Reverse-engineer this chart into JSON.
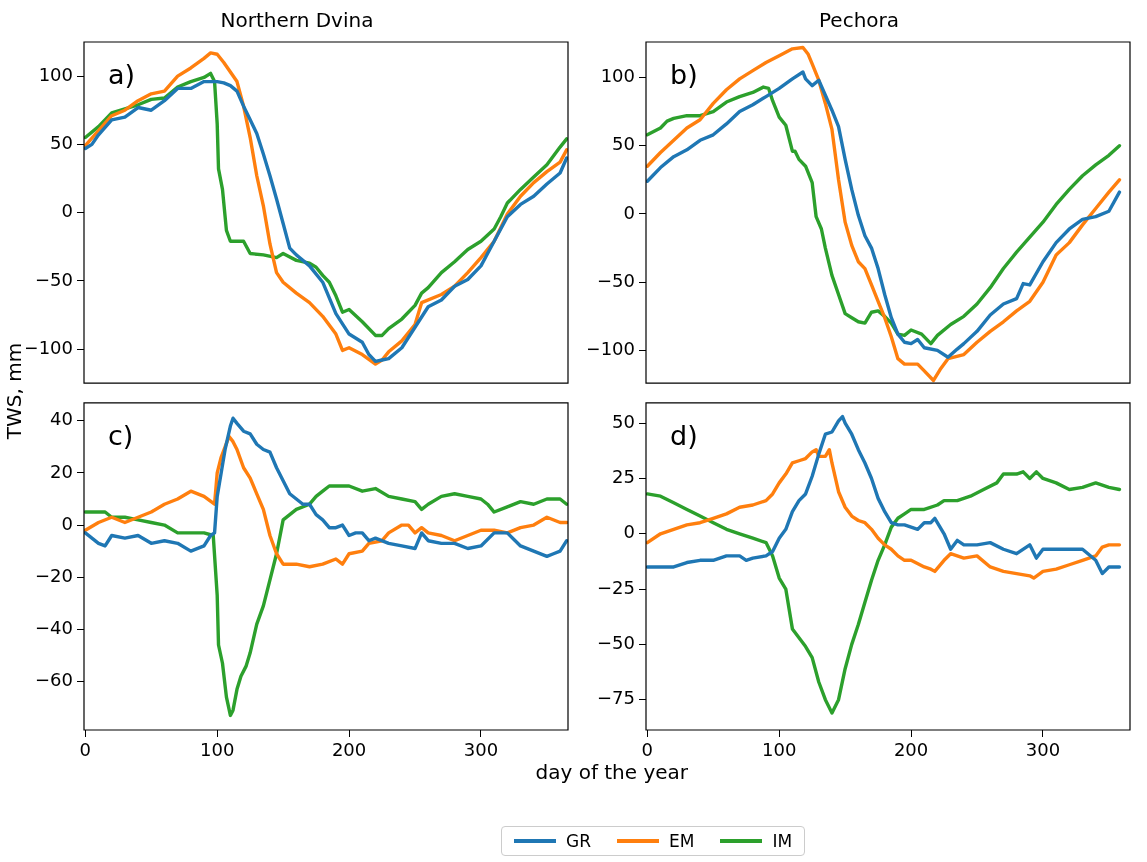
{
  "chart_data": [
    {
      "type": "line",
      "title": "Northern Dvina",
      "ylabel": "TWS, mm",
      "annotations": [
        "a)"
      ],
      "legend": "bottom",
      "tick_labels": "y",
      "xlim": [
        -1,
        366
      ],
      "xticks": [
        0,
        100,
        200,
        300
      ],
      "ylim": [
        -125,
        125
      ],
      "yticks": [
        100,
        50,
        0,
        {
          "value": -50,
          "label": "−50"
        },
        {
          "value": -100,
          "label": "−100"
        }
      ],
      "series": [
        {
          "name": "GR",
          "color": "#1f77b4",
          "x": [
            0,
            5,
            10,
            20,
            30,
            40,
            50,
            60,
            70,
            80,
            90,
            100,
            105,
            110,
            115,
            120,
            125,
            130,
            135,
            140,
            145,
            150,
            155,
            160,
            170,
            180,
            190,
            200,
            210,
            215,
            220,
            225,
            230,
            240,
            250,
            260,
            270,
            280,
            290,
            300,
            310,
            320,
            330,
            340,
            350,
            360,
            365
          ],
          "values": [
            47,
            50,
            57,
            68,
            70,
            77,
            75,
            82,
            91,
            91,
            96,
            96,
            95,
            93,
            89,
            78,
            68,
            58,
            43,
            27,
            10,
            -8,
            -26,
            -31,
            -39,
            -51,
            -74,
            -89,
            -95,
            -104,
            -109,
            -108,
            -107,
            -99,
            -84,
            -69,
            -64,
            -54,
            -49,
            -39,
            -21,
            -3,
            6,
            12,
            21,
            29,
            40
          ]
        },
        {
          "name": "EM",
          "color": "#ff7f0e",
          "x": [
            0,
            10,
            20,
            30,
            40,
            50,
            60,
            70,
            80,
            90,
            95,
            100,
            105,
            110,
            115,
            120,
            125,
            130,
            135,
            140,
            145,
            150,
            160,
            170,
            180,
            190,
            195,
            200,
            210,
            220,
            225,
            230,
            240,
            250,
            255,
            270,
            280,
            290,
            300,
            310,
            320,
            330,
            340,
            350,
            360,
            365
          ],
          "values": [
            49,
            60,
            71,
            75,
            82,
            87,
            89,
            100,
            106,
            113,
            117,
            116,
            110,
            103,
            96,
            78,
            55,
            27,
            5,
            -23,
            -44,
            -51,
            -59,
            -66,
            -76,
            -89,
            -101,
            -99,
            -104,
            -111,
            -108,
            -102,
            -94,
            -82,
            -66,
            -60,
            -54,
            -44,
            -33,
            -21,
            -1,
            12,
            22,
            30,
            37,
            46
          ]
        },
        {
          "name": "IM",
          "color": "#2ca02c",
          "x": [
            0,
            10,
            20,
            30,
            40,
            50,
            60,
            70,
            80,
            90,
            95,
            98,
            100,
            101,
            104,
            107,
            110,
            115,
            120,
            125,
            135,
            145,
            150,
            160,
            170,
            175,
            180,
            185,
            190,
            195,
            200,
            210,
            220,
            225,
            230,
            240,
            250,
            255,
            260,
            270,
            280,
            290,
            300,
            310,
            315,
            320,
            330,
            340,
            350,
            360,
            365
          ],
          "values": [
            55,
            63,
            73,
            76,
            79,
            83,
            84,
            92,
            96,
            99,
            102,
            96,
            65,
            32,
            17,
            -13,
            -21,
            -21,
            -21,
            -30,
            -31,
            -33,
            -30,
            -35,
            -37,
            -40,
            -46,
            -51,
            -61,
            -73,
            -71,
            -80,
            -90,
            -90,
            -85,
            -78,
            -68,
            -59,
            -55,
            -44,
            -36,
            -27,
            -21,
            -12,
            -3,
            7,
            17,
            26,
            35,
            48,
            54
          ]
        }
      ]
    },
    {
      "type": "line",
      "title": "Pechora",
      "annotations": [
        "b)"
      ],
      "tick_labels": "y",
      "xlim": [
        -1,
        366
      ],
      "xticks": [
        0,
        100,
        200,
        300
      ],
      "ylim": [
        -124,
        126
      ],
      "yticks": [
        100,
        50,
        0,
        {
          "value": -50,
          "label": "−50"
        },
        {
          "value": -100,
          "label": "−100"
        }
      ],
      "series": [
        {
          "name": "GR",
          "color": "#1f77b4",
          "x": [
            0,
            10,
            20,
            30,
            40,
            50,
            60,
            70,
            80,
            90,
            100,
            110,
            118,
            120,
            125,
            130,
            135,
            140,
            145,
            150,
            155,
            160,
            165,
            170,
            175,
            180,
            185,
            190,
            195,
            200,
            205,
            210,
            220,
            228,
            235,
            240,
            250,
            260,
            270,
            280,
            285,
            290,
            300,
            310,
            320,
            330,
            340,
            350,
            358
          ],
          "values": [
            24,
            34,
            42,
            47,
            54,
            58,
            66,
            75,
            80,
            86,
            92,
            99,
            104,
            99,
            94,
            98,
            87,
            76,
            64,
            40,
            18,
            -1,
            -16,
            -25,
            -40,
            -59,
            -76,
            -88,
            -94,
            -95,
            -92,
            -98,
            -100,
            -105,
            -99,
            -95,
            -86,
            -74,
            -66,
            -62,
            -51,
            -52,
            -35,
            -21,
            -11,
            -4,
            -2,
            2,
            16
          ]
        },
        {
          "name": "EM",
          "color": "#ff7f0e",
          "x": [
            0,
            10,
            20,
            30,
            40,
            50,
            60,
            70,
            80,
            90,
            100,
            110,
            118,
            122,
            125,
            130,
            135,
            140,
            145,
            150,
            155,
            160,
            165,
            170,
            175,
            180,
            185,
            190,
            195,
            205,
            210,
            217,
            222,
            228,
            240,
            250,
            260,
            270,
            280,
            290,
            300,
            310,
            320,
            330,
            340,
            350,
            358
          ],
          "values": [
            35,
            45,
            54,
            63,
            69,
            81,
            91,
            99,
            105,
            111,
            116,
            121,
            122,
            117,
            110,
            98,
            81,
            62,
            25,
            -6,
            -23,
            -35,
            -40,
            -52,
            -64,
            -76,
            -90,
            -106,
            -110,
            -110,
            -115,
            -122,
            -114,
            -106,
            -103,
            -94,
            -86,
            -79,
            -71,
            -64,
            -50,
            -30,
            -21,
            -8,
            4,
            16,
            25
          ]
        },
        {
          "name": "IM",
          "color": "#2ca02c",
          "x": [
            0,
            10,
            15,
            20,
            30,
            40,
            50,
            60,
            70,
            80,
            88,
            92,
            95,
            100,
            105,
            110,
            112,
            115,
            120,
            125,
            128,
            132,
            135,
            140,
            145,
            150,
            155,
            160,
            165,
            170,
            175,
            180,
            185,
            190,
            195,
            200,
            208,
            215,
            220,
            230,
            240,
            250,
            260,
            270,
            280,
            290,
            300,
            310,
            320,
            330,
            340,
            350,
            358
          ],
          "values": [
            58,
            63,
            68,
            70,
            72,
            72,
            75,
            82,
            86,
            89,
            93,
            92,
            83,
            71,
            65,
            46,
            46,
            40,
            35,
            23,
            -2,
            -11,
            -25,
            -45,
            -59,
            -73,
            -76,
            -79,
            -80,
            -72,
            -71,
            -75,
            -80,
            -88,
            -89,
            -85,
            -88,
            -95,
            -89,
            -81,
            -75,
            -66,
            -54,
            -40,
            -28,
            -17,
            -6,
            7,
            18,
            28,
            36,
            43,
            50
          ]
        }
      ]
    },
    {
      "type": "line",
      "xlabel": "day of the year",
      "annotations": [
        "c)"
      ],
      "xlim": [
        -1,
        366
      ],
      "xticks": [
        0,
        100,
        200,
        300
      ],
      "ylim": [
        -78.6,
        46.9
      ],
      "yticks": [
        40,
        20,
        0,
        {
          "value": -20,
          "label": "−20"
        },
        {
          "value": -40,
          "label": "−40"
        },
        {
          "value": -60,
          "label": "−60"
        }
      ],
      "series": [
        {
          "name": "GR",
          "color": "#1f77b4",
          "x": [
            0,
            5,
            10,
            15,
            20,
            30,
            40,
            50,
            60,
            70,
            80,
            90,
            95,
            98,
            100,
            103,
            106,
            110,
            112,
            115,
            120,
            125,
            130,
            135,
            140,
            145,
            150,
            155,
            160,
            165,
            170,
            175,
            180,
            185,
            190,
            195,
            200,
            205,
            210,
            215,
            220,
            230,
            240,
            250,
            255,
            260,
            270,
            280,
            290,
            300,
            310,
            320,
            330,
            340,
            350,
            355,
            360,
            365
          ],
          "values": [
            -3,
            -5,
            -7,
            -8,
            -4,
            -5,
            -4,
            -7,
            -6,
            -7,
            -10,
            -8,
            -4,
            -3,
            11,
            20,
            29,
            38,
            41,
            39,
            36,
            35,
            31,
            29,
            28,
            22,
            17,
            12,
            10,
            8,
            8,
            4,
            2,
            -1,
            -1,
            0,
            -4,
            -3,
            -3,
            -6,
            -5,
            -7,
            -8,
            -9,
            -3,
            -6,
            -7,
            -7,
            -9,
            -8,
            -3,
            -3,
            -8,
            -10,
            -12,
            -11,
            -10,
            -6
          ]
        },
        {
          "name": "EM",
          "color": "#ff7f0e",
          "x": [
            0,
            10,
            20,
            30,
            40,
            50,
            60,
            70,
            80,
            90,
            98,
            100,
            103,
            106,
            109,
            112,
            115,
            120,
            125,
            130,
            135,
            140,
            145,
            150,
            155,
            160,
            170,
            180,
            190,
            195,
            200,
            210,
            215,
            225,
            230,
            240,
            245,
            250,
            255,
            260,
            270,
            280,
            290,
            300,
            310,
            320,
            330,
            340,
            350,
            360,
            365
          ],
          "values": [
            -2,
            1,
            3,
            1,
            3,
            5,
            8,
            10,
            13,
            11,
            8,
            20,
            26,
            30,
            34,
            32,
            29,
            22,
            18,
            12,
            6,
            -4,
            -11,
            -15,
            -15,
            -15,
            -16,
            -15,
            -13,
            -15,
            -11,
            -10,
            -7,
            -6,
            -3,
            0,
            0,
            -3,
            -1,
            -3,
            -4,
            -6,
            -4,
            -2,
            -2,
            -3,
            -1,
            0,
            3,
            1,
            1
          ]
        },
        {
          "name": "IM",
          "color": "#2ca02c",
          "x": [
            0,
            10,
            15,
            20,
            30,
            40,
            50,
            60,
            70,
            80,
            90,
            97,
            100,
            101,
            104,
            107,
            110,
            112,
            115,
            118,
            122,
            125,
            130,
            135,
            140,
            145,
            150,
            155,
            160,
            170,
            175,
            180,
            185,
            195,
            200,
            210,
            220,
            230,
            240,
            250,
            255,
            260,
            270,
            280,
            290,
            300,
            305,
            310,
            320,
            330,
            340,
            350,
            360,
            365
          ],
          "values": [
            5,
            5,
            5,
            3,
            3,
            2,
            1,
            0,
            -3,
            -3,
            -3,
            -4,
            -27,
            -46,
            -53,
            -66,
            -73,
            -71,
            -63,
            -58,
            -54,
            -49,
            -38,
            -31,
            -21,
            -11,
            2,
            4,
            6,
            8,
            11,
            13,
            15,
            15,
            15,
            13,
            14,
            11,
            10,
            9,
            6,
            8,
            11,
            12,
            11,
            10,
            8,
            5,
            7,
            9,
            8,
            10,
            10,
            8
          ]
        }
      ]
    },
    {
      "type": "line",
      "annotations": [
        "d)"
      ],
      "xlim": [
        -1,
        366
      ],
      "xticks": [
        0,
        100,
        200,
        300
      ],
      "ylim": [
        -88.7,
        59.2
      ],
      "yticks": [
        50,
        25,
        0,
        {
          "value": -25,
          "label": "−25"
        },
        {
          "value": -50,
          "label": "−50"
        },
        {
          "value": -75,
          "label": "−75"
        }
      ],
      "series": [
        {
          "name": "GR",
          "color": "#1f77b4",
          "x": [
            0,
            10,
            20,
            30,
            40,
            50,
            60,
            70,
            75,
            80,
            90,
            95,
            100,
            105,
            110,
            115,
            120,
            125,
            130,
            135,
            140,
            145,
            148,
            150,
            155,
            160,
            165,
            170,
            175,
            180,
            185,
            190,
            195,
            200,
            205,
            210,
            215,
            218,
            225,
            230,
            235,
            240,
            250,
            260,
            270,
            280,
            290,
            295,
            300,
            310,
            320,
            330,
            340,
            345,
            350,
            358
          ],
          "values": [
            -15,
            -15,
            -15,
            -13,
            -12,
            -12,
            -10,
            -10,
            -12,
            -11,
            -10,
            -8,
            -2,
            2,
            10,
            15,
            18,
            26,
            36,
            45,
            46,
            51,
            53,
            50,
            45,
            38,
            32,
            25,
            16,
            10,
            5,
            4,
            4,
            3,
            2,
            5,
            5,
            7,
            0,
            -7,
            -3,
            -5,
            -5,
            -4,
            -7,
            -9,
            -5,
            -11,
            -7,
            -7,
            -7,
            -7,
            -12,
            -18,
            -15,
            -15
          ]
        },
        {
          "name": "EM",
          "color": "#ff7f0e",
          "x": [
            0,
            10,
            20,
            30,
            40,
            50,
            60,
            70,
            80,
            90,
            95,
            100,
            105,
            110,
            115,
            120,
            125,
            128,
            130,
            135,
            138,
            140,
            145,
            150,
            155,
            160,
            165,
            170,
            175,
            180,
            185,
            190,
            195,
            200,
            210,
            215,
            218,
            225,
            230,
            240,
            250,
            260,
            270,
            280,
            290,
            293,
            300,
            310,
            320,
            330,
            340,
            345,
            350,
            358
          ],
          "values": [
            -4,
            0,
            2,
            4,
            5,
            7,
            9,
            12,
            13,
            15,
            18,
            23,
            27,
            32,
            33,
            34,
            37,
            38,
            35,
            35,
            38,
            32,
            19,
            12,
            8,
            6,
            5,
            2,
            -2,
            -5,
            -7,
            -10,
            -12,
            -12,
            -15,
            -16,
            -17,
            -12,
            -9,
            -11,
            -10,
            -15,
            -17,
            -18,
            -19,
            -20,
            -17,
            -16,
            -14,
            -12,
            -10,
            -6,
            -5,
            -5
          ]
        },
        {
          "name": "IM",
          "color": "#2ca02c",
          "x": [
            0,
            10,
            20,
            30,
            40,
            50,
            60,
            70,
            80,
            90,
            95,
            100,
            105,
            110,
            115,
            120,
            125,
            130,
            135,
            140,
            145,
            150,
            155,
            160,
            165,
            170,
            175,
            180,
            185,
            190,
            195,
            200,
            210,
            220,
            225,
            235,
            245,
            255,
            265,
            270,
            280,
            285,
            290,
            295,
            300,
            310,
            320,
            330,
            340,
            350,
            358
          ],
          "values": [
            18,
            17,
            14,
            11,
            8,
            5,
            2,
            0,
            -2,
            -4,
            -10,
            -20,
            -25,
            -43,
            -47,
            -51,
            -56,
            -67,
            -75,
            -81,
            -75,
            -61,
            -50,
            -41,
            -31,
            -21,
            -12,
            -5,
            3,
            7,
            9,
            11,
            11,
            13,
            15,
            15,
            17,
            20,
            23,
            27,
            27,
            28,
            25,
            28,
            25,
            23,
            20,
            21,
            23,
            21,
            20
          ]
        }
      ]
    }
  ]
}
